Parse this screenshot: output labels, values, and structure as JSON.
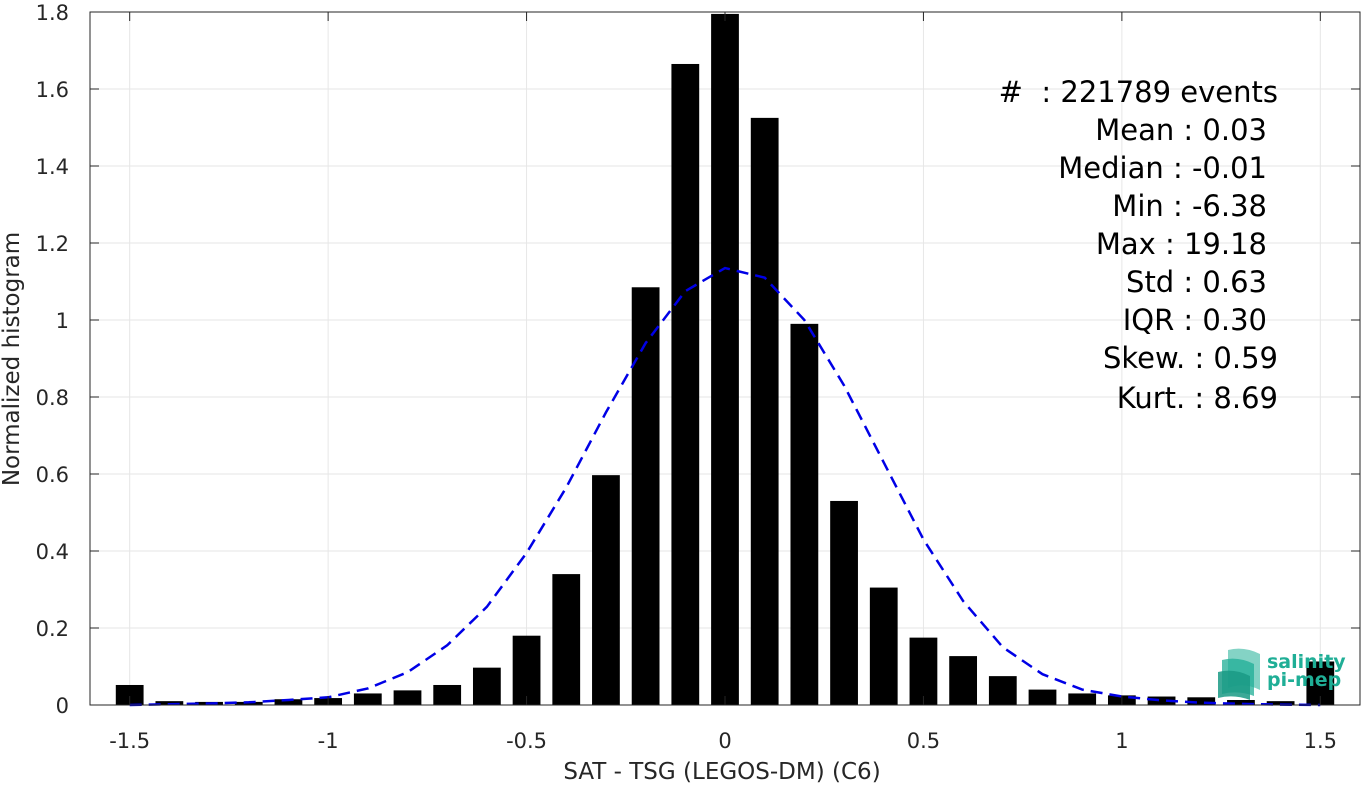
{
  "chart_data": {
    "type": "bar",
    "xlabel": "SAT - TSG (LEGOS-DM) (C6)",
    "ylabel": "Normalized histogram",
    "xlim": [
      -1.6,
      1.6
    ],
    "ylim": [
      0,
      1.8
    ],
    "xticks": [
      -1.5,
      -1,
      -0.5,
      0,
      0.5,
      1,
      1.5
    ],
    "xtick_labels": [
      "-1.5",
      "-1",
      "-0.5",
      "0",
      "0.5",
      "1",
      "1.5"
    ],
    "yticks": [
      0,
      0.2,
      0.4,
      0.6,
      0.8,
      1,
      1.2,
      1.4,
      1.6,
      1.8
    ],
    "ytick_labels": [
      "0",
      "0.2",
      "0.4",
      "0.6",
      "0.8",
      "1",
      "1.2",
      "1.4",
      "1.6",
      "1.8"
    ],
    "grid": true,
    "bin_width": 0.1,
    "bars": {
      "color": "#000000",
      "x": [
        -1.5,
        -1.4,
        -1.3,
        -1.2,
        -1.1,
        -1.0,
        -0.9,
        -0.8,
        -0.7,
        -0.6,
        -0.5,
        -0.4,
        -0.3,
        -0.2,
        -0.1,
        0.0,
        0.1,
        0.2,
        0.3,
        0.4,
        0.5,
        0.6,
        0.7,
        0.8,
        0.9,
        1.0,
        1.1,
        1.2,
        1.3,
        1.4,
        1.5
      ],
      "values": [
        0.052,
        0.01,
        0.008,
        0.008,
        0.015,
        0.018,
        0.03,
        0.038,
        0.052,
        0.097,
        0.18,
        0.34,
        0.597,
        1.085,
        1.665,
        1.795,
        1.525,
        0.99,
        0.53,
        0.305,
        0.175,
        0.127,
        0.075,
        0.04,
        0.03,
        0.025,
        0.022,
        0.02,
        0.013,
        0.01,
        0.113
      ]
    },
    "fit_curve": {
      "style": "dashed",
      "color": "#0000e6",
      "x": [
        -1.5,
        -1.4,
        -1.3,
        -1.2,
        -1.1,
        -1.0,
        -0.9,
        -0.8,
        -0.7,
        -0.6,
        -0.5,
        -0.4,
        -0.3,
        -0.2,
        -0.1,
        0.0,
        0.1,
        0.2,
        0.3,
        0.4,
        0.5,
        0.6,
        0.7,
        0.8,
        0.9,
        1.0,
        1.1,
        1.2,
        1.3,
        1.4,
        1.5
      ],
      "values": [
        0.0,
        0.002,
        0.004,
        0.007,
        0.013,
        0.02,
        0.043,
        0.085,
        0.155,
        0.255,
        0.395,
        0.565,
        0.76,
        0.94,
        1.075,
        1.135,
        1.11,
        1.0,
        0.83,
        0.63,
        0.43,
        0.27,
        0.15,
        0.08,
        0.04,
        0.022,
        0.012,
        0.006,
        0.003,
        0.001,
        0.0
      ]
    },
    "annotations": {
      "stats": [
        {
          "label": "#  : 221789 events"
        },
        {
          "label": "Mean : 0.03"
        },
        {
          "label": "Median : -0.01"
        },
        {
          "label": "Min : -6.38"
        },
        {
          "label": "Max : 19.18"
        },
        {
          "label": "Std : 0.63"
        },
        {
          "label": "IQR : 0.30"
        },
        {
          "label": "Skew. : 0.59"
        },
        {
          "label": "Kurt. : 8.69"
        }
      ]
    }
  },
  "logo": {
    "line1": "salinity",
    "line2": "pi-mep",
    "color": "#1fae96"
  }
}
